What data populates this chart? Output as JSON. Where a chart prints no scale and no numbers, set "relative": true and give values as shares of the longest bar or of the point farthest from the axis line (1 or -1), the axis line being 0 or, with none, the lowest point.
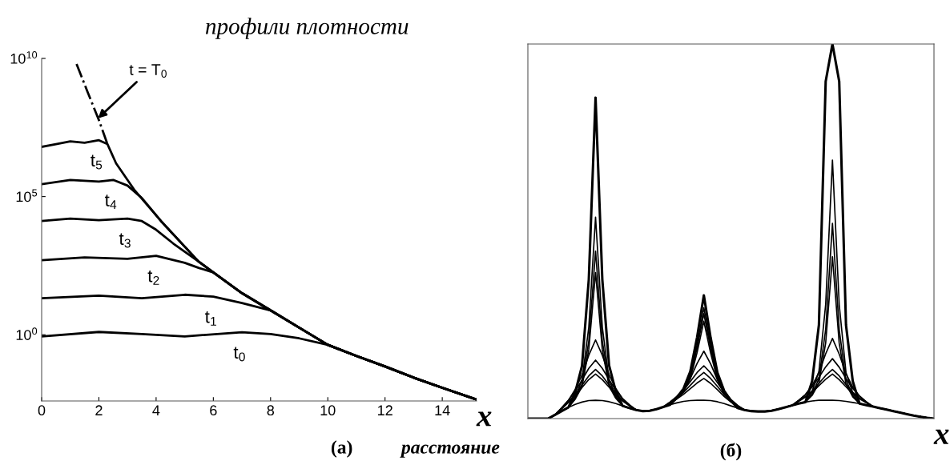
{
  "chart_data": [
    {
      "type": "line",
      "title": "профили плотности",
      "xlabel": "x",
      "log": "y",
      "xlim": [
        0,
        15.2
      ],
      "ylim": [
        0.004,
        10000000000.0
      ],
      "xticks": [
        0,
        2,
        4,
        6,
        8,
        10,
        12,
        14
      ],
      "yticks": [
        {
          "value": 1,
          "label": "10$^{0}$"
        },
        {
          "value": 100000,
          "label": "10$^{5}$"
        },
        {
          "value": 10000000000,
          "label": "10$^{10}$"
        }
      ],
      "series": [
        {
          "color": "#000000",
          "x": [
            0,
            2,
            3.5,
            5,
            7,
            8,
            9,
            10,
            11,
            12,
            13,
            14,
            15.2
          ],
          "values": [
            0.87,
            1.26,
            1.05,
            0.87,
            1.23,
            1.05,
            0.74,
            0.43,
            0.17,
            0.071,
            0.028,
            0.012,
            0.0045
          ]
        },
        {
          "color": "#000000",
          "x": [
            0,
            2,
            3.5,
            5,
            6,
            7,
            8,
            9,
            10,
            11,
            12,
            13,
            14,
            15.2
          ],
          "values": [
            21,
            26,
            21,
            28,
            24,
            14,
            7.6,
            1.8,
            0.43,
            0.17,
            0.071,
            0.028,
            0.012,
            0.0045
          ]
        },
        {
          "color": "#000000",
          "x": [
            0,
            1.5,
            3,
            4,
            5,
            5.5,
            6,
            7,
            8,
            9,
            10,
            11,
            12,
            13,
            14,
            15.2
          ],
          "values": [
            500,
            630,
            560,
            720,
            400,
            260,
            180,
            32,
            7.6,
            1.8,
            0.43,
            0.17,
            0.071,
            0.028,
            0.012,
            0.0045
          ]
        },
        {
          "color": "#000000",
          "x": [
            0,
            1,
            2,
            3,
            3.5,
            4,
            4.6,
            5.48,
            6,
            7,
            8,
            9,
            10,
            11,
            12,
            13,
            14,
            15.2
          ],
          "values": [
            13000,
            16000,
            14000,
            16000,
            13000,
            6300,
            2000,
            450,
            180,
            32,
            7.6,
            1.8,
            0.43,
            0.17,
            0.071,
            0.028,
            0.012,
            0.0045
          ]
        },
        {
          "color": "#000000",
          "x": [
            0,
            1,
            2,
            2.5,
            3,
            3.5,
            4.17,
            5.48,
            6,
            7,
            8,
            9,
            10,
            11,
            12,
            13,
            14,
            15.2
          ],
          "values": [
            280000,
            400000,
            350000,
            400000,
            250000,
            89000,
            13000,
            450,
            180,
            32,
            7.6,
            1.8,
            0.43,
            0.17,
            0.071,
            0.028,
            0.012,
            0.0045
          ]
        },
        {
          "color": "#000000",
          "x": [
            0,
            0.5,
            1,
            1.5,
            2,
            2.3,
            2.6,
            3.23,
            4.17,
            5.48,
            6,
            7,
            8,
            9,
            10,
            11,
            12,
            13,
            14,
            15.2
          ],
          "values": [
            6300000,
            7900000,
            10000000,
            8900000,
            11000000,
            7900000,
            1600000,
            180000,
            13000,
            450,
            180,
            32,
            7.6,
            1.8,
            0.43,
            0.17,
            0.071,
            0.028,
            0.012,
            0.0045
          ]
        },
        {
          "color": "#000000",
          "line_style": "dashdot",
          "x": [
            1.22,
            1.6,
            2.0,
            2.3
          ],
          "values": [
            6300000000,
            630000000,
            59000000,
            7900000
          ]
        }
      ],
      "annotations": [
        {
          "text": "t = T$_{0}$",
          "x": 1.97,
          "y": 68000000
        },
        {
          "text": "t$_{5}$",
          "x": 2,
          "y": 11000000
        },
        {
          "text": "t$_{4}$",
          "x": 2.5,
          "y": 400000
        },
        {
          "text": "t$_{3}$",
          "x": 3,
          "y": 16000
        },
        {
          "text": "t$_{2}$",
          "x": 4,
          "y": 720
        },
        {
          "text": "t$_{1}$",
          "x": 6,
          "y": 24
        },
        {
          "text": "t$_{0}$",
          "x": 7,
          "y": 1.23
        },
        "(а)",
        "расстояние"
      ]
    },
    {
      "type": "line",
      "relative": true,
      "xlabel": "x",
      "categories": [
        null,
        null,
        null,
        null,
        null,
        null,
        null,
        null,
        null,
        null,
        null,
        null,
        null,
        null,
        null,
        null,
        null,
        null,
        null,
        null,
        null,
        null,
        null,
        null,
        null,
        null,
        null,
        null,
        null,
        null,
        null,
        null,
        null,
        null,
        null,
        null,
        null,
        null,
        null,
        null,
        null,
        null,
        null,
        null,
        null,
        null,
        null,
        null,
        null,
        null,
        null,
        null,
        null,
        null,
        null,
        null,
        null,
        null,
        null,
        null,
        null
      ],
      "series": [
        {
          "color": "#000000",
          "values": [
            0,
            0,
            0,
            0,
            0.01,
            0.02,
            0.03,
            0.07,
            0.141,
            0.371,
            0.857,
            0.371,
            0.142,
            0.072,
            0.034,
            0.028,
            0.023,
            0.02,
            0.021,
            0.025,
            0.031,
            0.037,
            0.056,
            0.08,
            0.126,
            0.217,
            0.329,
            0.216,
            0.123,
            0.074,
            0.048,
            0.028,
            0.023,
            0.02,
            0.019,
            0.019,
            0.021,
            0.025,
            0.03,
            0.035,
            0.04,
            0.044,
            0.1,
            0.25,
            0.9,
            1.0,
            0.9,
            0.25,
            0.1,
            0.04,
            0.036,
            0.032,
            0.028,
            0.024,
            0.02,
            0.016,
            0.012,
            0.008,
            0.005,
            0.002,
            0
          ]
        },
        {
          "color": "#000000",
          "values": [
            0,
            0,
            0,
            0,
            0.01,
            0.02,
            0.03,
            0.058,
            0.103,
            0.244,
            0.538,
            0.244,
            0.104,
            0.06,
            0.034,
            0.028,
            0.023,
            0.02,
            0.021,
            0.025,
            0.031,
            0.037,
            0.054,
            0.076,
            0.117,
            0.197,
            0.296,
            0.196,
            0.114,
            0.07,
            0.046,
            0.028,
            0.023,
            0.02,
            0.019,
            0.019,
            0.021,
            0.025,
            0.03,
            0.035,
            0.04,
            0.044,
            0.073,
            0.126,
            0.305,
            0.69,
            0.304,
            0.123,
            0.069,
            0.04,
            0.036,
            0.032,
            0.028,
            0.024,
            0.02,
            0.016,
            0.012,
            0.008,
            0.005,
            0.002,
            0
          ]
        },
        {
          "color": "#000000",
          "values": [
            0,
            0,
            0,
            0,
            0.01,
            0.02,
            0.03,
            0.054,
            0.092,
            0.207,
            0.447,
            0.207,
            0.093,
            0.056,
            0.034,
            0.028,
            0.023,
            0.02,
            0.021,
            0.025,
            0.031,
            0.037,
            0.054,
            0.074,
            0.113,
            0.188,
            0.28,
            0.187,
            0.11,
            0.068,
            0.046,
            0.028,
            0.023,
            0.02,
            0.019,
            0.019,
            0.021,
            0.025,
            0.03,
            0.035,
            0.04,
            0.044,
            0.066,
            0.106,
            0.238,
            0.521,
            0.237,
            0.103,
            0.062,
            0.04,
            0.036,
            0.032,
            0.028,
            0.024,
            0.02,
            0.016,
            0.012,
            0.008,
            0.005,
            0.002,
            0
          ]
        },
        {
          "color": "#000000",
          "values": [
            0,
            0,
            0,
            0,
            0.01,
            0.02,
            0.03,
            0.052,
            0.085,
            0.184,
            0.39,
            0.184,
            0.086,
            0.054,
            0.034,
            0.028,
            0.023,
            0.02,
            0.021,
            0.025,
            0.031,
            0.037,
            0.053,
            0.071,
            0.107,
            0.176,
            0.26,
            0.175,
            0.104,
            0.065,
            0.045,
            0.028,
            0.023,
            0.02,
            0.019,
            0.019,
            0.021,
            0.025,
            0.03,
            0.035,
            0.04,
            0.044,
            0.062,
            0.095,
            0.202,
            0.432,
            0.201,
            0.092,
            0.058,
            0.04,
            0.036,
            0.032,
            0.028,
            0.024,
            0.02,
            0.016,
            0.012,
            0.008,
            0.005,
            0.002,
            0
          ]
        },
        {
          "color": "#000000",
          "values": [
            0,
            0,
            0,
            0,
            0.01,
            0.028,
            0.049,
            0.078,
            0.116,
            0.169,
            0.21,
            0.169,
            0.117,
            0.08,
            0.053,
            0.036,
            0.023,
            0.02,
            0.021,
            0.025,
            0.031,
            0.044,
            0.058,
            0.079,
            0.107,
            0.147,
            0.18,
            0.146,
            0.104,
            0.073,
            0.05,
            0.035,
            0.023,
            0.02,
            0.019,
            0.019,
            0.021,
            0.025,
            0.03,
            0.035,
            0.048,
            0.064,
            0.088,
            0.123,
            0.173,
            0.214,
            0.172,
            0.12,
            0.084,
            0.06,
            0.044,
            0.032,
            0.028,
            0.024,
            0.02,
            0.016,
            0.012,
            0.008,
            0.005,
            0.002,
            0
          ]
        },
        {
          "color": "#000000",
          "values": [
            0,
            0,
            0,
            0,
            0.01,
            0.029,
            0.049,
            0.073,
            0.103,
            0.134,
            0.156,
            0.134,
            0.104,
            0.075,
            0.053,
            0.037,
            0.023,
            0.02,
            0.021,
            0.025,
            0.031,
            0.044,
            0.059,
            0.076,
            0.099,
            0.123,
            0.141,
            0.122,
            0.096,
            0.07,
            0.051,
            0.035,
            0.023,
            0.02,
            0.019,
            0.019,
            0.021,
            0.025,
            0.03,
            0.035,
            0.049,
            0.064,
            0.084,
            0.11,
            0.138,
            0.16,
            0.137,
            0.107,
            0.08,
            0.06,
            0.045,
            0.032,
            0.028,
            0.024,
            0.02,
            0.016,
            0.012,
            0.008,
            0.005,
            0.002,
            0
          ]
        },
        {
          "color": "#000000",
          "values": [
            0,
            0,
            0,
            0,
            0.01,
            0.027,
            0.045,
            0.065,
            0.089,
            0.114,
            0.131,
            0.114,
            0.09,
            0.067,
            0.049,
            0.035,
            0.023,
            0.02,
            0.021,
            0.025,
            0.031,
            0.043,
            0.055,
            0.07,
            0.089,
            0.108,
            0.123,
            0.107,
            0.086,
            0.064,
            0.047,
            0.034,
            0.023,
            0.02,
            0.019,
            0.019,
            0.021,
            0.025,
            0.03,
            0.035,
            0.047,
            0.059,
            0.074,
            0.094,
            0.115,
            0.131,
            0.114,
            0.091,
            0.07,
            0.055,
            0.043,
            0.032,
            0.028,
            0.024,
            0.02,
            0.016,
            0.012,
            0.008,
            0.005,
            0.002,
            0
          ]
        },
        {
          "color": "#000000",
          "values": [
            0,
            0,
            0,
            0,
            0.01,
            0.026,
            0.043,
            0.061,
            0.083,
            0.104,
            0.119,
            0.104,
            0.084,
            0.063,
            0.047,
            0.034,
            0.023,
            0.02,
            0.021,
            0.025,
            0.031,
            0.042,
            0.052,
            0.065,
            0.08,
            0.095,
            0.107,
            0.094,
            0.077,
            0.059,
            0.044,
            0.033,
            0.023,
            0.02,
            0.019,
            0.019,
            0.021,
            0.025,
            0.03,
            0.035,
            0.046,
            0.057,
            0.07,
            0.088,
            0.105,
            0.119,
            0.104,
            0.085,
            0.066,
            0.053,
            0.042,
            0.032,
            0.028,
            0.024,
            0.02,
            0.016,
            0.012,
            0.008,
            0.005,
            0.002,
            0
          ]
        },
        {
          "color": "#000000",
          "values": [
            0,
            0,
            0,
            0,
            0.01,
            0.02,
            0.03,
            0.038,
            0.044,
            0.048,
            0.049,
            0.048,
            0.045,
            0.04,
            0.034,
            0.028,
            0.023,
            0.02,
            0.021,
            0.025,
            0.031,
            0.037,
            0.042,
            0.046,
            0.048,
            0.049,
            0.049,
            0.048,
            0.045,
            0.04,
            0.034,
            0.028,
            0.023,
            0.02,
            0.019,
            0.019,
            0.021,
            0.025,
            0.03,
            0.035,
            0.04,
            0.044,
            0.047,
            0.049,
            0.049,
            0.049,
            0.048,
            0.046,
            0.043,
            0.04,
            0.036,
            0.032,
            0.028,
            0.024,
            0.02,
            0.016,
            0.012,
            0.008,
            0.005,
            0.002,
            0
          ]
        }
      ],
      "annotations": [
        "(б)"
      ]
    }
  ]
}
